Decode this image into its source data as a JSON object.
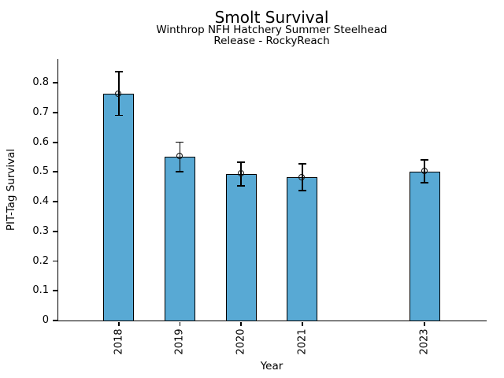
{
  "chart_data": {
    "type": "bar",
    "title": "Smolt Survival",
    "subtitle_line1": "Winthrop NFH Hatchery Summer Steelhead",
    "subtitle_line2": "Release - RockyReach",
    "xlabel": "Year",
    "ylabel": "PIT-Tag Survival",
    "categories": [
      "2018",
      "2019",
      "2020",
      "2021",
      "2023"
    ],
    "x_years": [
      2018,
      2019,
      2020,
      2021,
      2023
    ],
    "values": [
      0.763,
      0.552,
      0.493,
      0.482,
      0.502
    ],
    "error_low": [
      0.69,
      0.501,
      0.453,
      0.438,
      0.464
    ],
    "error_high": [
      0.838,
      0.6,
      0.533,
      0.528,
      0.54
    ],
    "y_ticks": [
      0,
      0.1,
      0.2,
      0.3,
      0.4,
      0.5,
      0.6,
      0.7,
      0.8
    ],
    "y_tick_labels": [
      "0",
      "0.1",
      "0.2",
      "0.3",
      "0.4",
      "0.5",
      "0.6",
      "0.7",
      "0.8"
    ],
    "ylim": [
      0,
      0.88
    ],
    "xlim": [
      2017,
      2024
    ],
    "bar_width_years": 0.5,
    "grid": false,
    "legend": null,
    "bar_color": "#58A9D4",
    "bar_edge_color": "#000000",
    "error_color": "#000000",
    "marker_style": "open-circle"
  }
}
